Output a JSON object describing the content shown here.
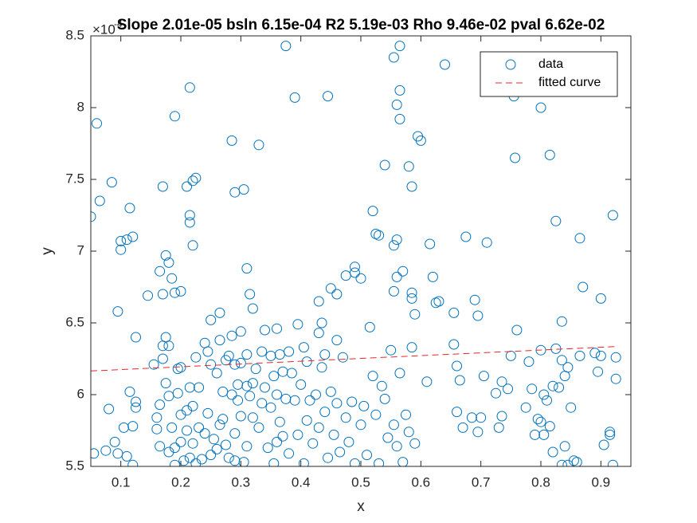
{
  "chart_data": {
    "type": "scatter",
    "title": "Slope 2.01e-05 bsln 6.15e-04 R2 5.19e-03 Rho 9.46e-02 pval 6.62e-02",
    "x_label": "x",
    "y_label": "y",
    "y_exponent": {
      "base": "×10",
      "power": "-4"
    },
    "xlim": [
      0.05,
      0.95
    ],
    "ylim": [
      5.5,
      8.5
    ],
    "xticks": [
      0.1,
      0.2,
      0.3,
      0.4,
      0.5,
      0.6,
      0.7,
      0.8,
      0.9
    ],
    "yticks": [
      5.5,
      6,
      6.5,
      7,
      7.5,
      8,
      8.5
    ],
    "grid": false,
    "legend": "northeast",
    "series": [
      {
        "name": "data",
        "type": "scatter",
        "marker": "circle",
        "color": "#0072bd",
        "x": [
          0.05,
          0.06,
          0.065,
          0.085,
          0.095,
          0.1,
          0.1,
          0.11,
          0.115,
          0.12,
          0.125,
          0.145,
          0.165,
          0.17,
          0.17,
          0.175,
          0.18,
          0.185,
          0.19,
          0.19,
          0.2,
          0.21,
          0.215,
          0.215,
          0.215,
          0.22,
          0.225,
          0.22,
          0.25,
          0.265,
          0.285,
          0.29,
          0.305,
          0.31,
          0.315,
          0.32,
          0.33,
          0.36,
          0.375,
          0.39,
          0.395,
          0.43,
          0.435,
          0.445,
          0.45,
          0.46,
          0.475,
          0.49,
          0.49,
          0.5,
          0.515,
          0.52,
          0.525,
          0.53,
          0.54,
          0.555,
          0.555,
          0.56,
          0.56,
          0.565,
          0.565,
          0.565,
          0.56,
          0.555,
          0.57,
          0.58,
          0.585,
          0.585,
          0.585,
          0.595,
          0.6,
          0.59,
          0.615,
          0.62,
          0.625,
          0.63,
          0.64,
          0.655,
          0.675,
          0.69,
          0.695,
          0.71,
          0.755,
          0.757,
          0.76,
          0.8,
          0.815,
          0.825,
          0.835,
          0.865,
          0.87,
          0.9,
          0.92,
          0.055,
          0.075,
          0.08,
          0.09,
          0.095,
          0.105,
          0.11,
          0.115,
          0.12,
          0.12,
          0.125,
          0.125,
          0.155,
          0.16,
          0.16,
          0.165,
          0.165,
          0.17,
          0.17,
          0.175,
          0.175,
          0.18,
          0.18,
          0.18,
          0.185,
          0.19,
          0.19,
          0.195,
          0.195,
          0.2,
          0.2,
          0.2,
          0.205,
          0.21,
          0.21,
          0.215,
          0.215,
          0.22,
          0.22,
          0.225,
          0.225,
          0.23,
          0.23,
          0.235,
          0.24,
          0.24,
          0.245,
          0.245,
          0.25,
          0.25,
          0.255,
          0.26,
          0.26,
          0.265,
          0.265,
          0.27,
          0.27,
          0.275,
          0.275,
          0.28,
          0.28,
          0.285,
          0.285,
          0.29,
          0.29,
          0.29,
          0.295,
          0.295,
          0.3,
          0.3,
          0.3,
          0.305,
          0.31,
          0.31,
          0.31,
          0.315,
          0.32,
          0.32,
          0.325,
          0.33,
          0.335,
          0.335,
          0.34,
          0.34,
          0.345,
          0.35,
          0.35,
          0.355,
          0.355,
          0.36,
          0.36,
          0.365,
          0.365,
          0.37,
          0.37,
          0.375,
          0.38,
          0.38,
          0.385,
          0.39,
          0.395,
          0.4,
          0.405,
          0.405,
          0.41,
          0.41,
          0.415,
          0.42,
          0.425,
          0.43,
          0.43,
          0.435,
          0.44,
          0.44,
          0.445,
          0.45,
          0.455,
          0.46,
          0.46,
          0.465,
          0.47,
          0.475,
          0.48,
          0.485,
          0.49,
          0.5,
          0.505,
          0.51,
          0.52,
          0.525,
          0.53,
          0.535,
          0.54,
          0.545,
          0.55,
          0.555,
          0.56,
          0.565,
          0.57,
          0.575,
          0.58,
          0.585,
          0.59,
          0.61,
          0.655,
          0.66,
          0.66,
          0.665,
          0.67,
          0.685,
          0.695,
          0.7,
          0.705,
          0.725,
          0.73,
          0.735,
          0.735,
          0.745,
          0.75,
          0.775,
          0.78,
          0.785,
          0.79,
          0.795,
          0.8,
          0.8,
          0.805,
          0.805,
          0.81,
          0.815,
          0.82,
          0.82,
          0.825,
          0.83,
          0.835,
          0.835,
          0.84,
          0.84,
          0.845,
          0.845,
          0.85,
          0.855,
          0.86,
          0.865,
          0.89,
          0.895,
          0.9,
          0.905,
          0.915,
          0.915,
          0.92,
          0.925,
          0.925
        ],
        "values": [
          7.24,
          7.89,
          7.35,
          7.48,
          6.58,
          7.01,
          7.07,
          7.08,
          7.3,
          7.1,
          6.4,
          6.69,
          6.86,
          7.45,
          6.7,
          6.97,
          6.92,
          6.81,
          7.94,
          6.71,
          6.72,
          7.45,
          8.14,
          7.25,
          7.2,
          7.49,
          7.51,
          7.04,
          6.52,
          6.57,
          7.77,
          7.41,
          7.43,
          6.88,
          6.7,
          6.6,
          7.74,
          6.46,
          8.43,
          8.07,
          6.49,
          6.65,
          6.5,
          8.08,
          6.74,
          6.7,
          6.83,
          6.89,
          6.85,
          6.81,
          6.47,
          7.28,
          7.12,
          7.11,
          7.6,
          7.04,
          8.35,
          8.02,
          7.08,
          8.43,
          8.12,
          7.92,
          6.82,
          6.72,
          6.86,
          7.59,
          7.45,
          6.71,
          6.67,
          7.8,
          7.77,
          6.56,
          7.05,
          6.82,
          6.64,
          6.65,
          8.3,
          6.57,
          7.1,
          6.66,
          6.55,
          7.06,
          8.08,
          7.65,
          6.45,
          8.0,
          7.67,
          7.21,
          6.51,
          7.09,
          6.75,
          6.67,
          7.25,
          5.59,
          5.61,
          5.9,
          5.67,
          5.59,
          5.77,
          5.57,
          6.02,
          5.51,
          5.78,
          5.95,
          5.91,
          6.21,
          5.84,
          5.76,
          5.64,
          5.93,
          6.34,
          6.25,
          6.08,
          6.4,
          6.34,
          5.99,
          5.6,
          5.77,
          5.51,
          5.63,
          6.18,
          6.01,
          6.19,
          5.86,
          5.67,
          5.54,
          5.89,
          5.75,
          6.05,
          5.56,
          5.92,
          5.66,
          6.26,
          5.52,
          6.05,
          5.77,
          5.55,
          6.36,
          5.73,
          6.3,
          5.87,
          6.21,
          5.58,
          5.69,
          6.15,
          5.62,
          6.38,
          5.79,
          6.02,
          5.83,
          6.24,
          5.65,
          6.27,
          5.56,
          6.41,
          6.0,
          6.21,
          5.73,
          5.54,
          6.07,
          5.96,
          6.44,
          6.22,
          5.85,
          5.53,
          6.28,
          6.06,
          5.64,
          5.99,
          6.08,
          5.84,
          6.18,
          5.77,
          6.3,
          5.94,
          6.45,
          6.05,
          5.63,
          6.27,
          5.91,
          6.13,
          5.52,
          6.0,
          5.67,
          6.28,
          5.81,
          6.16,
          5.71,
          5.97,
          6.3,
          5.59,
          6.15,
          5.96,
          5.72,
          6.07,
          6.33,
          5.52,
          6.23,
          5.82,
          5.96,
          5.66,
          6.0,
          6.43,
          5.77,
          6.19,
          6.28,
          5.88,
          5.56,
          6.02,
          5.72,
          6.38,
          5.94,
          5.6,
          6.26,
          5.84,
          5.67,
          5.95,
          5.52,
          5.79,
          5.92,
          5.58,
          6.13,
          5.86,
          5.52,
          6.06,
          5.97,
          5.7,
          6.31,
          5.79,
          5.64,
          6.15,
          5.53,
          5.86,
          5.74,
          6.33,
          5.66,
          6.09,
          6.35,
          5.88,
          6.2,
          6.1,
          5.77,
          5.84,
          5.74,
          5.84,
          6.13,
          6.01,
          5.77,
          6.09,
          5.85,
          6.04,
          6.27,
          5.91,
          6.23,
          6.04,
          5.72,
          5.83,
          6.31,
          5.81,
          6.0,
          5.72,
          5.96,
          5.78,
          6.06,
          5.6,
          6.32,
          6.05,
          5.51,
          6.24,
          5.64,
          6.13,
          5.51,
          6.19,
          5.91,
          5.54,
          5.53,
          6.27,
          6.29,
          6.16,
          6.27,
          5.65,
          5.74,
          5.72,
          5.51,
          6.11,
          6.26
        ]
      },
      {
        "name": "fitted curve",
        "type": "line",
        "line_style": "dashed",
        "color": "#e8262b",
        "x": [
          0.05,
          0.925
        ],
        "values": [
          6.165,
          6.335
        ]
      }
    ]
  }
}
